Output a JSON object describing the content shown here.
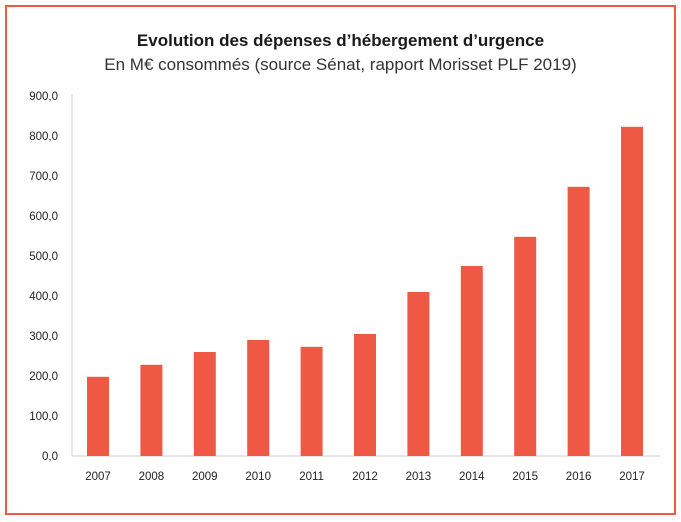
{
  "chart_data": {
    "type": "bar",
    "title": "Evolution des dépenses d’hébergement d’urgence",
    "subtitle": "En M€ consommés (source Sénat, rapport Morisset PLF 2019)",
    "categories": [
      "2007",
      "2008",
      "2009",
      "2010",
      "2011",
      "2012",
      "2013",
      "2014",
      "2015",
      "2016",
      "2017"
    ],
    "values": [
      198,
      228,
      260,
      290,
      273,
      305,
      410,
      475,
      548,
      673,
      823
    ],
    "ylim": [
      0,
      900
    ],
    "yticks": [
      "0,0",
      "100,0",
      "200,0",
      "300,0",
      "400,0",
      "500,0",
      "600,0",
      "700,0",
      "800,0",
      "900,0"
    ],
    "grid": false,
    "bar_color": "#ef5844",
    "frame_color": "#ef5a45"
  }
}
